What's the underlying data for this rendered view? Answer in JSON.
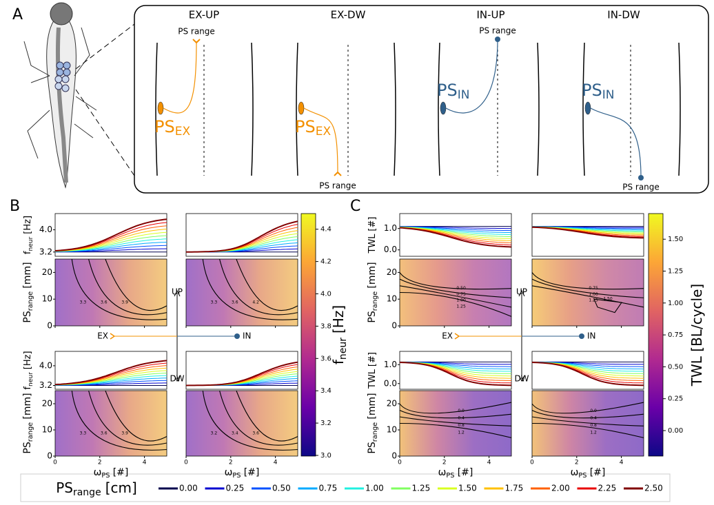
{
  "panel_labels": {
    "a": "A",
    "b": "B",
    "c": "C"
  },
  "diagram": {
    "columns": [
      {
        "title": "EX-UP",
        "ps": "PS",
        "sub": "EX",
        "range": "PS range"
      },
      {
        "title": "EX-DW",
        "ps": "PS",
        "sub": "EX",
        "range": "PS range"
      },
      {
        "title": "IN-UP",
        "ps": "PS",
        "sub": "IN",
        "range": "PS range"
      },
      {
        "title": "IN-DW",
        "ps": "PS",
        "sub": "IN",
        "range": "PS range"
      }
    ]
  },
  "panel_b": {
    "line_ylabel": {
      "main": "f",
      "sub": "neur",
      "unit": "[Hz]"
    },
    "line_yticks": [
      "3.2",
      "4.0"
    ],
    "heat_ylabel": {
      "main": "PS",
      "sub": "range",
      "unit": "[mm]"
    },
    "heat_yticks": [
      "0",
      "10",
      "20"
    ],
    "xticks": [
      "0",
      "2",
      "4"
    ],
    "xlabel": {
      "main": "ω",
      "sub": "PS",
      "unit": "[#]"
    },
    "contours": [
      [
        "3.3",
        "3.6",
        "3.9"
      ],
      [
        "3.3",
        "3.6",
        "4.2"
      ],
      [
        "3.3",
        "3.6",
        "3.9"
      ],
      [
        "3.2",
        "3.4",
        "3.6"
      ]
    ],
    "colorbar": {
      "ticks": [
        "3.0",
        "3.2",
        "3.4",
        "3.6",
        "3.8",
        "4.0",
        "4.2",
        "4.4"
      ],
      "label": {
        "main": "f",
        "sub": "neur",
        "unit": "[Hz]"
      }
    }
  },
  "panel_c": {
    "line_ylabel": {
      "main": "TWL",
      "unit": "[#]"
    },
    "line_yticks": [
      "0.0",
      "1.0"
    ],
    "heat_ylabel": {
      "main": "PS",
      "sub": "range",
      "unit": "[mm]"
    },
    "heat_yticks": [
      "0",
      "10",
      "20"
    ],
    "xticks": [
      "0",
      "2",
      "4"
    ],
    "xlabel": {
      "main": "ω",
      "sub": "PS",
      "unit": "[#]"
    },
    "contours": [
      [
        "0.50",
        "0.75",
        "1.00",
        "1.25"
      ],
      [
        "0.75",
        "1.00",
        "1.25",
        "1.50"
      ],
      [
        "0.0",
        "0.4",
        "0.8",
        "1.2"
      ],
      [
        "0.0",
        "0.4",
        "0.8",
        "1.2"
      ]
    ],
    "colorbar": {
      "ticks": [
        "0.00",
        "0.25",
        "0.50",
        "0.75",
        "1.00",
        "1.25",
        "1.50"
      ],
      "label": {
        "main": "TWL [BL/cycle]"
      }
    }
  },
  "guide": {
    "up": "UP",
    "down": "DW",
    "ex": "EX",
    "in": "IN"
  },
  "legend": {
    "title": {
      "main": "PS",
      "sub": "range",
      "unit": "[cm]"
    },
    "entries": [
      {
        "label": "0.00",
        "color": "#00004d"
      },
      {
        "label": "0.25",
        "color": "#0000d0"
      },
      {
        "label": "0.50",
        "color": "#0050ff"
      },
      {
        "label": "0.75",
        "color": "#00aaff"
      },
      {
        "label": "1.00",
        "color": "#20f0e0"
      },
      {
        "label": "1.25",
        "color": "#80ff60"
      },
      {
        "label": "1.50",
        "color": "#d8ff20"
      },
      {
        "label": "1.75",
        "color": "#ffc000"
      },
      {
        "label": "2.00",
        "color": "#ff6000"
      },
      {
        "label": "2.25",
        "color": "#e80000"
      },
      {
        "label": "2.50",
        "color": "#800000"
      }
    ]
  }
}
